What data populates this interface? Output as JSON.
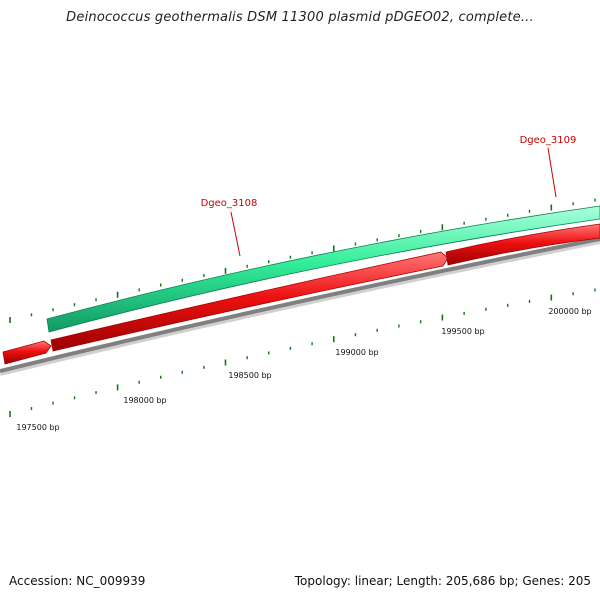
{
  "title": "Deinococcus geothermalis DSM 11300 plasmid pDGEO02, complete...",
  "accession": "Accession: NC_009939",
  "summary": "Topology: linear; Length: 205,686 bp; Genes: 205",
  "colors": {
    "backbone": "#808080",
    "forward_feature": "#33ee99",
    "reverse_gene": "#ee1111",
    "tick": "#117711",
    "gene_label": "#cc0000",
    "label_line": "#cc0000"
  },
  "ticks": [
    {
      "bp": 197500,
      "label": "197500 bp"
    },
    {
      "bp": 198000,
      "label": "198000 bp"
    },
    {
      "bp": 198500,
      "label": "198500 bp"
    },
    {
      "bp": 199000,
      "label": "199000 bp"
    },
    {
      "bp": 199500,
      "label": "199500 bp"
    },
    {
      "bp": 200000,
      "label": "200000 bp"
    }
  ],
  "genes": [
    {
      "name": "Dgeo_3108"
    },
    {
      "name": "Dgeo_3109"
    }
  ]
}
